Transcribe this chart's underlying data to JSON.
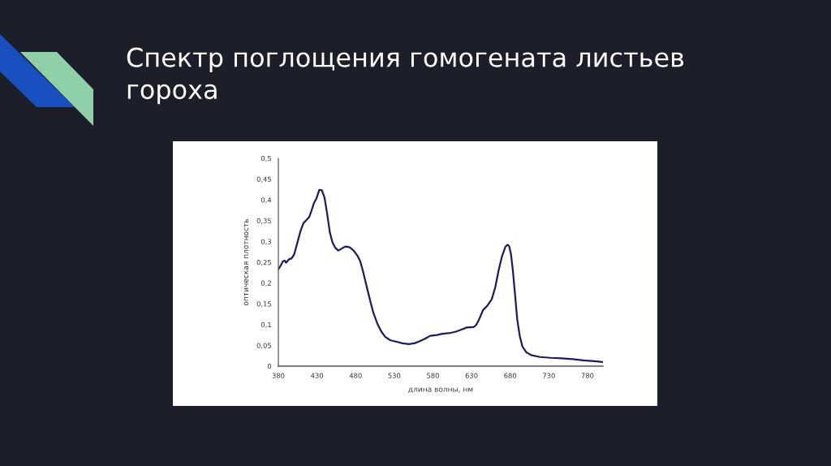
{
  "chart_data": {
    "type": "line",
    "title": "Спектр поглощения гомогената листьев гороха",
    "xlabel": "длина волны, нм",
    "ylabel": "оптическая плотность",
    "x": [
      380,
      383.4,
      385.8,
      388,
      390,
      393.7,
      397,
      400.5,
      405.6,
      409,
      412.5,
      416.6,
      420,
      422.7,
      426,
      429.6,
      433,
      436.4,
      439.8,
      443.2,
      446.7,
      450,
      453.5,
      457.6,
      462,
      467,
      472.3,
      477.4,
      482.6,
      486,
      489.4,
      492.8,
      496.2,
      499.7,
      503,
      508.2,
      513.3,
      518.5,
      525.3,
      532,
      540.7,
      549,
      556,
      563,
      569.7,
      576.6,
      585.3,
      592.3,
      602.8,
      609.8,
      616.8,
      623.9,
      632.6,
      636,
      639.6,
      644.9,
      650.2,
      656.1,
      660.7,
      665.3,
      669.5,
      673.7,
      676.5,
      678.6,
      681,
      683.5,
      686.3,
      689.1,
      692.3,
      695.8,
      701,
      708,
      718.6,
      732.6,
      746.7,
      760.7,
      774.7,
      788.8,
      799.3
    ],
    "series": [
      {
        "color": "#1c1c5c",
        "values": [
          0.233,
          0.243,
          0.252,
          0.254,
          0.249,
          0.257,
          0.259,
          0.269,
          0.304,
          0.327,
          0.344,
          0.352,
          0.359,
          0.373,
          0.392,
          0.405,
          0.424,
          0.423,
          0.405,
          0.366,
          0.321,
          0.298,
          0.285,
          0.278,
          0.283,
          0.288,
          0.286,
          0.278,
          0.265,
          0.252,
          0.229,
          0.203,
          0.177,
          0.151,
          0.128,
          0.102,
          0.083,
          0.07,
          0.062,
          0.059,
          0.055,
          0.053,
          0.055,
          0.06,
          0.066,
          0.073,
          0.075,
          0.078,
          0.08,
          0.083,
          0.088,
          0.093,
          0.094,
          0.099,
          0.112,
          0.135,
          0.145,
          0.161,
          0.19,
          0.233,
          0.265,
          0.287,
          0.292,
          0.289,
          0.269,
          0.229,
          0.171,
          0.112,
          0.073,
          0.047,
          0.033,
          0.026,
          0.022,
          0.02,
          0.019,
          0.017,
          0.014,
          0.012,
          0.01
        ]
      }
    ],
    "xlim": [
      380,
      800
    ],
    "ylim": [
      0,
      0.5
    ],
    "xticks": [
      380,
      430,
      480,
      530,
      580,
      630,
      680,
      730,
      780
    ],
    "yticks": [
      0,
      {
        "value": 0.05,
        "label": "0,05"
      },
      {
        "value": 0.1,
        "label": "0,1"
      },
      {
        "value": 0.15,
        "label": "0,15"
      },
      {
        "value": 0.2,
        "label": "0,2"
      },
      {
        "value": 0.25,
        "label": "0,25"
      },
      {
        "value": 0.3,
        "label": "0,3"
      },
      {
        "value": 0.35,
        "label": "0,35"
      },
      {
        "value": 0.4,
        "label": "0,4"
      },
      {
        "value": 0.45,
        "label": "0,45"
      },
      {
        "value": 0.5,
        "label": "0,5"
      }
    ],
    "line_style": "solid"
  }
}
